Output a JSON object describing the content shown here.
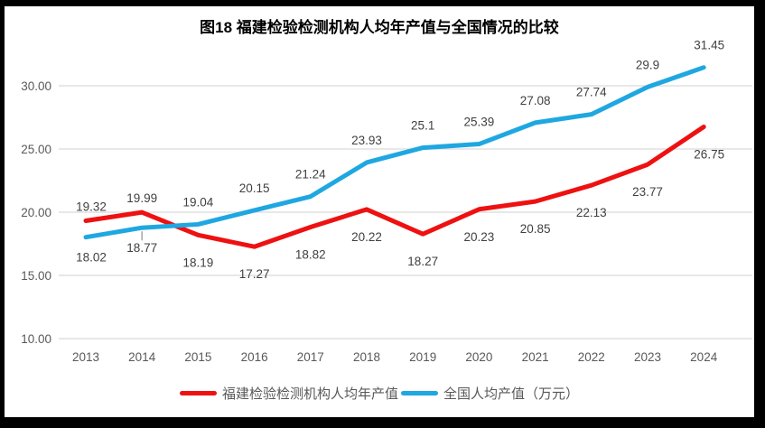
{
  "chart_data": {
    "type": "line",
    "title": "图18  福建检验检测机构人均年产值与全国情况的比较",
    "categories": [
      "2013",
      "2014",
      "2015",
      "2016",
      "2017",
      "2018",
      "2019",
      "2020",
      "2021",
      "2022",
      "2023",
      "2024"
    ],
    "series": [
      {
        "name": "福建检验检测机构人均年产值",
        "color": "#ee1111",
        "values": [
          19.32,
          19.99,
          18.19,
          17.27,
          18.82,
          20.22,
          18.27,
          20.23,
          20.85,
          22.13,
          23.77,
          26.75
        ],
        "labels": [
          "19.32",
          "19.99",
          "18.19",
          "17.27",
          "18.82",
          "20.22",
          "18.27",
          "20.23",
          "20.85",
          "22.13",
          "23.77",
          "26.75"
        ],
        "label_side": [
          "above",
          "above",
          "below",
          "below",
          "below",
          "below",
          "below",
          "below",
          "below",
          "below",
          "below",
          "below"
        ]
      },
      {
        "name": "全国人均产值（万元）",
        "color": "#1fa7e1",
        "values": [
          18.02,
          18.77,
          19.04,
          20.15,
          21.24,
          23.93,
          25.1,
          25.39,
          27.08,
          27.74,
          29.9,
          31.45
        ],
        "labels": [
          "18.02",
          "18.77",
          "19.04",
          "20.15",
          "21.24",
          "23.93",
          "25.1",
          "25.39",
          "27.08",
          "27.74",
          "29.9",
          "31.45"
        ],
        "label_side": [
          "below",
          "below",
          "above",
          "above",
          "above",
          "above",
          "above",
          "above",
          "above",
          "above",
          "above",
          "above"
        ]
      }
    ],
    "y_axis": {
      "tick_labels": [
        "10.00",
        "15.00",
        "20.00",
        "25.00",
        "30.00"
      ],
      "tick_values": [
        10,
        15,
        20,
        25,
        30
      ]
    },
    "ylim": [
      10,
      32
    ],
    "grid": "horizontal-only",
    "legend_position": "bottom",
    "label_leader_lines": [
      {
        "series_index": 1,
        "point_index": 1
      }
    ]
  },
  "colors": {
    "frame": "#000000",
    "background": "#ffffff",
    "gridline": "#d9d9d9",
    "axis_text": "#595959",
    "data_label_text": "#404040",
    "leader_line": "#a6a6a6"
  }
}
